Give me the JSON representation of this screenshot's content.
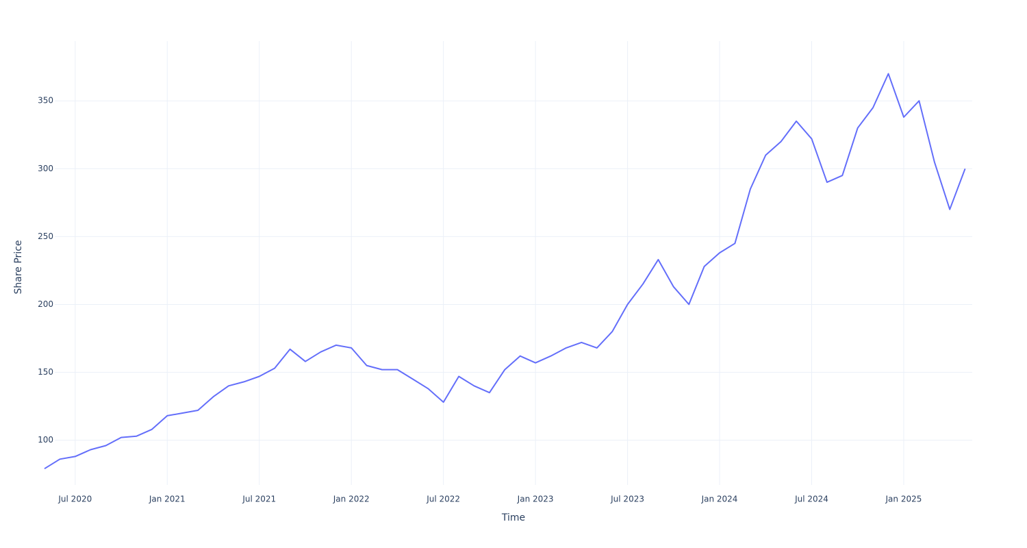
{
  "chart_data": {
    "type": "line",
    "x_label": "Time",
    "y_label": "Share Price",
    "grid": true,
    "xlim": [
      "2020-05",
      "2025-06"
    ],
    "ylim": [
      67,
      394
    ],
    "yticks": [
      100,
      150,
      200,
      250,
      300,
      350
    ],
    "xticks": [
      {
        "value": "2020-07",
        "label": "Jul 2020"
      },
      {
        "value": "2021-01",
        "label": "Jan 2021"
      },
      {
        "value": "2021-07",
        "label": "Jul 2021"
      },
      {
        "value": "2022-01",
        "label": "Jan 2022"
      },
      {
        "value": "2022-07",
        "label": "Jul 2022"
      },
      {
        "value": "2023-01",
        "label": "Jan 2023"
      },
      {
        "value": "2023-07",
        "label": "Jul 2023"
      },
      {
        "value": "2024-01",
        "label": "Jan 2024"
      },
      {
        "value": "2024-07",
        "label": "Jul 2024"
      },
      {
        "value": "2025-01",
        "label": "Jan 2025"
      }
    ],
    "x": [
      "2020-05",
      "2020-06",
      "2020-07",
      "2020-08",
      "2020-09",
      "2020-10",
      "2020-11",
      "2020-12",
      "2021-01",
      "2021-02",
      "2021-03",
      "2021-04",
      "2021-05",
      "2021-06",
      "2021-07",
      "2021-08",
      "2021-09",
      "2021-10",
      "2021-11",
      "2021-12",
      "2022-01",
      "2022-02",
      "2022-03",
      "2022-04",
      "2022-05",
      "2022-06",
      "2022-07",
      "2022-08",
      "2022-09",
      "2022-10",
      "2022-11",
      "2022-12",
      "2023-01",
      "2023-02",
      "2023-03",
      "2023-04",
      "2023-05",
      "2023-06",
      "2023-07",
      "2023-08",
      "2023-09",
      "2023-10",
      "2023-11",
      "2023-12",
      "2024-01",
      "2024-02",
      "2024-03",
      "2024-04",
      "2024-05",
      "2024-06",
      "2024-07",
      "2024-08",
      "2024-09",
      "2024-10",
      "2024-11",
      "2024-12",
      "2025-01",
      "2025-02",
      "2025-03",
      "2025-04",
      "2025-05"
    ],
    "series": [
      {
        "color": "#636efa",
        "values": [
          79,
          86,
          88,
          93,
          96,
          102,
          103,
          108,
          118,
          120,
          122,
          132,
          140,
          143,
          147,
          153,
          167,
          158,
          165,
          170,
          168,
          155,
          152,
          152,
          145,
          138,
          128,
          147,
          140,
          135,
          152,
          162,
          157,
          162,
          168,
          172,
          168,
          180,
          200,
          215,
          233,
          213,
          200,
          228,
          238,
          245,
          285,
          310,
          320,
          335,
          322,
          290,
          295,
          330,
          345,
          370,
          338,
          350,
          305,
          270,
          300
        ]
      }
    ]
  }
}
